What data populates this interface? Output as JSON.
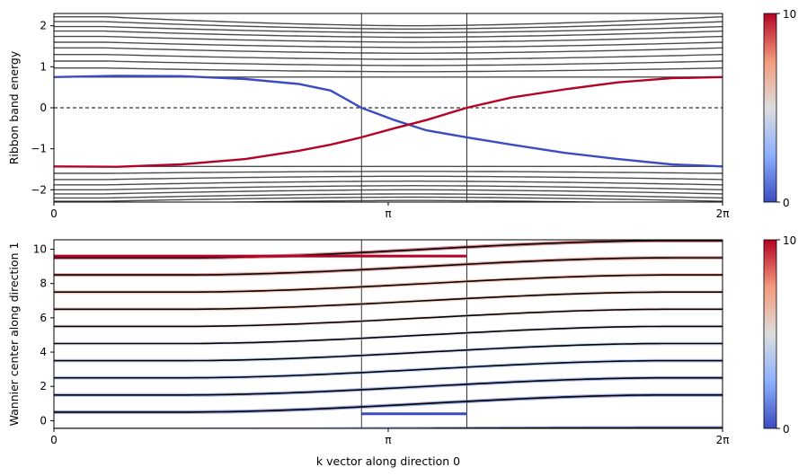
{
  "chart_data": [
    {
      "type": "line",
      "ylabel": "Ribbon band energy",
      "xlabel": "",
      "xlim": [
        0,
        6.2832
      ],
      "ylim": [
        -2.3,
        2.3
      ],
      "xticks": [
        {
          "value": 0,
          "label": "0"
        },
        {
          "value": 3.1416,
          "label": "π"
        },
        {
          "value": 6.2832,
          "label": "2π"
        }
      ],
      "yticks": [
        -2,
        -1,
        0,
        1,
        2
      ],
      "ytick_labels": [
        "−2",
        "−1",
        "0",
        "1",
        "2"
      ],
      "vlines": [
        2.89,
        3.88
      ],
      "hline": {
        "y": 0,
        "style": "dashed"
      },
      "colorbar": {
        "min": 0,
        "max": 10,
        "min_label": "0",
        "max_label": "10",
        "colormap": "coolwarm"
      },
      "bulk_band_color": "#3a3a3a",
      "bulk_upper_edges": [
        0.75,
        0.88,
        1.03,
        1.18,
        1.33,
        1.47,
        1.6,
        1.72,
        1.83,
        1.92,
        2.0
      ],
      "bulk_upper_far": [
        0.75,
        0.97,
        1.14,
        1.3,
        1.46,
        1.6,
        1.74,
        1.87,
        1.98,
        2.1,
        2.22
      ],
      "bulk_lower_edges": [
        -1.43,
        -1.55,
        -1.67,
        -1.79,
        -1.9,
        -2.0,
        -2.1,
        -2.18,
        -2.26
      ],
      "bulk_lower_far": [
        -1.43,
        -1.6,
        -1.75,
        -1.88,
        -2.0,
        -2.1,
        -2.2,
        -2.28,
        -2.36
      ],
      "edge_states": [
        {
          "x": [
            0,
            0.6,
            1.2,
            1.8,
            2.3,
            2.6,
            2.89,
            3.2,
            3.5,
            3.88,
            4.3,
            4.8,
            5.3,
            5.8,
            6.2832
          ],
          "y": [
            0.75,
            0.78,
            0.77,
            0.7,
            0.58,
            0.42,
            0.0,
            -0.3,
            -0.55,
            -0.72,
            -0.9,
            -1.1,
            -1.25,
            -1.38,
            -1.43
          ],
          "color_value": 0
        },
        {
          "x": [
            0,
            0.6,
            1.2,
            1.8,
            2.3,
            2.6,
            2.89,
            3.2,
            3.5,
            3.88,
            4.3,
            4.8,
            5.3,
            5.8,
            6.2832
          ],
          "y": [
            -1.43,
            -1.44,
            -1.38,
            -1.25,
            -1.05,
            -0.9,
            -0.72,
            -0.5,
            -0.3,
            0.0,
            0.25,
            0.45,
            0.62,
            0.72,
            0.75
          ],
          "color_value": 10
        }
      ]
    },
    {
      "type": "line",
      "ylabel": "Wannier center along direction 1",
      "xlabel": "k vector along direction 0",
      "xlim": [
        0,
        6.2832
      ],
      "ylim": [
        -0.45,
        10.55
      ],
      "xticks": [
        {
          "value": 0,
          "label": "0"
        },
        {
          "value": 3.1416,
          "label": "π"
        },
        {
          "value": 6.2832,
          "label": "2π"
        }
      ],
      "yticks": [
        0,
        2,
        4,
        6,
        8,
        10
      ],
      "ytick_labels": [
        "0",
        "2",
        "4",
        "6",
        "8",
        "10"
      ],
      "vlines": [
        2.89,
        3.88
      ],
      "colorbar": {
        "min": 0,
        "max": 10,
        "min_label": "0",
        "max_label": "10",
        "colormap": "coolwarm"
      },
      "wannier_lines": [
        {
          "start": -0.5,
          "end": -0.42
        },
        {
          "start": 0.5,
          "end": 1.5
        },
        {
          "start": 1.5,
          "end": 2.5
        },
        {
          "start": 2.5,
          "end": 3.5
        },
        {
          "start": 3.5,
          "end": 4.5
        },
        {
          "start": 4.5,
          "end": 5.5
        },
        {
          "start": 5.5,
          "end": 6.5
        },
        {
          "start": 6.5,
          "end": 7.5
        },
        {
          "start": 7.5,
          "end": 8.5
        },
        {
          "start": 8.5,
          "end": 9.5
        },
        {
          "start": 9.5,
          "end": 10.5
        }
      ],
      "line_color_values": [
        0,
        0.5,
        1.5,
        2.5,
        3.5,
        4.5,
        5.5,
        6.5,
        7.5,
        8.5,
        9.5
      ],
      "edge_wannier": [
        {
          "x0": 0,
          "x1": 3.88,
          "y": 9.6,
          "color_value": 10
        },
        {
          "x0": 2.89,
          "x1": 3.88,
          "y": 0.4,
          "color_value": 0
        }
      ]
    }
  ]
}
